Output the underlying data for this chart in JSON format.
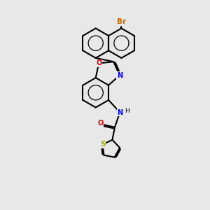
{
  "background_color": "#e8e8e8",
  "bond_color": "#000000",
  "atom_colors": {
    "Br": "#cc6600",
    "O": "#dd0000",
    "N": "#0000ee",
    "S": "#aaaa00",
    "H": "#000000",
    "C": "#000000"
  },
  "figsize": [
    3.0,
    3.0
  ],
  "dpi": 100,
  "lw": 1.5
}
